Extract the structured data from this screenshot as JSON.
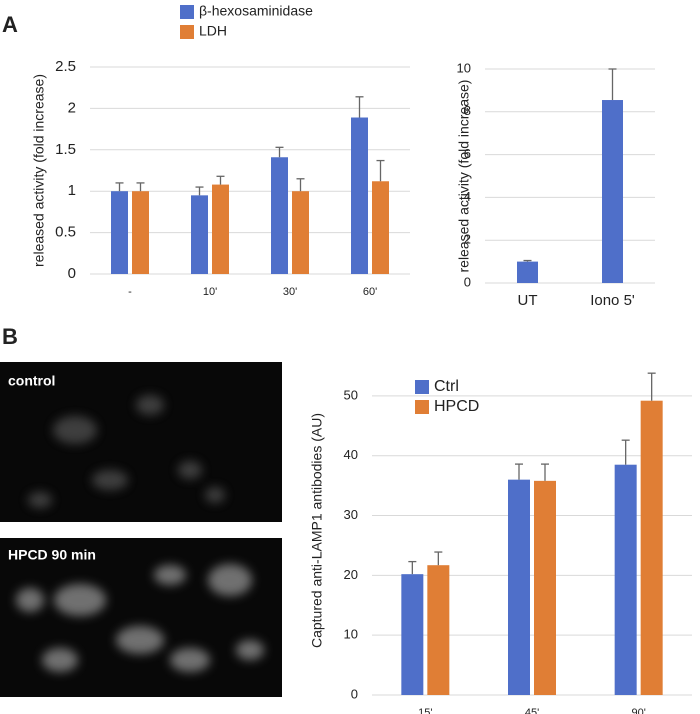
{
  "panels": [
    "A",
    "B"
  ],
  "images": [
    {
      "label": "control"
    },
    {
      "label": "HPCD 90 min"
    }
  ],
  "chart_data": [
    {
      "type": "bar",
      "y_label": "released activity (fold increase)",
      "categories": [
        "-",
        "10'",
        "30'",
        "60'"
      ],
      "series": [
        {
          "name": "β-hexosaminidase",
          "color": "#4f6fc9",
          "values": [
            1.0,
            0.95,
            1.41,
            1.89
          ],
          "errors": [
            0.1,
            0.1,
            0.12,
            0.25
          ]
        },
        {
          "name": "LDH",
          "color": "#e07e35",
          "values": [
            1.0,
            1.08,
            1.0,
            1.12
          ],
          "errors": [
            0.1,
            0.1,
            0.15,
            0.25
          ]
        }
      ],
      "ylim": [
        0,
        2.5
      ],
      "yticks": [
        0,
        0.5,
        1,
        1.5,
        2,
        2.5
      ],
      "grid": true,
      "legend": "top"
    },
    {
      "type": "bar",
      "y_label": "released activity (fold increase)",
      "categories": [
        "UT",
        "Iono 5'"
      ],
      "values": [
        1.0,
        8.55
      ],
      "errors": [
        0.05,
        1.45
      ],
      "color": "#4f6fc9",
      "ylim": [
        0,
        10
      ],
      "yticks": [
        0,
        2,
        4,
        6,
        8,
        10
      ],
      "grid": true
    },
    {
      "type": "bar",
      "y_label": "Captured anti-LAMP1 antibodies (AU)",
      "categories": [
        "15'",
        "45'",
        "90'"
      ],
      "series": [
        {
          "name": "Ctrl",
          "color": "#4f6fc9",
          "values": [
            20.2,
            36.0,
            38.5
          ],
          "errors": [
            2.1,
            2.6,
            4.1
          ]
        },
        {
          "name": "HPCD",
          "color": "#e07e35",
          "values": [
            21.7,
            35.8,
            49.2
          ],
          "errors": [
            2.2,
            2.8,
            4.6
          ]
        }
      ],
      "ylim": [
        0,
        55
      ],
      "yticks": [
        0,
        10,
        20,
        30,
        40,
        50
      ],
      "grid": true,
      "legend": "upper left"
    }
  ]
}
